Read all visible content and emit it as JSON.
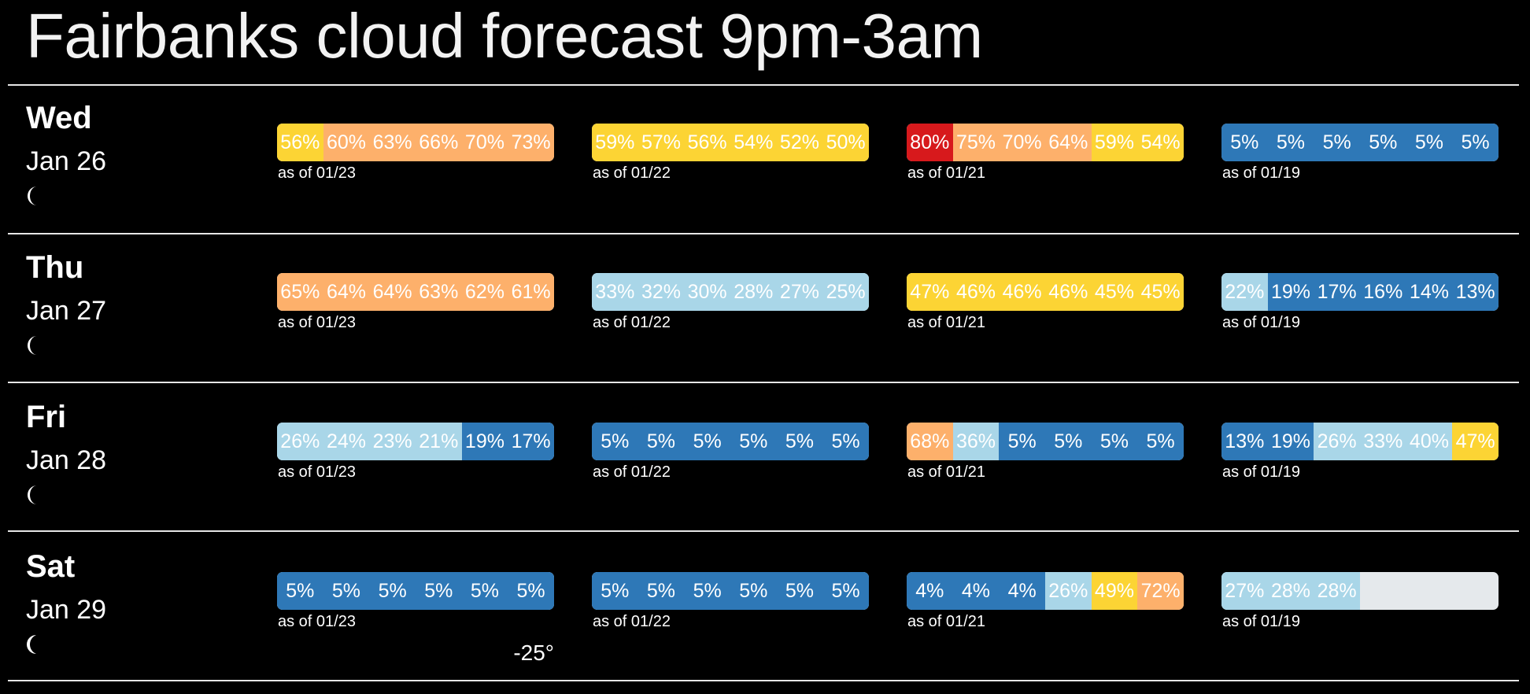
{
  "title": "Fairbanks cloud forecast 9pm-3am",
  "colors": {
    "background": "#000000",
    "clear": "#2e78b7",
    "mostly_clear": "#a9d6e8",
    "partly_cloudy": "#fcd434",
    "mostly_cloudy": "#fdb06b",
    "cloudy": "#d7191c",
    "no_data": "#e5e9ec"
  },
  "days": [
    {
      "name": "Wed",
      "date": "Jan 26",
      "moon_icon": "waning-crescent-moon-icon",
      "forecasts": [
        {
          "as_of": "as of 01/23",
          "segments": [
            {
              "label": "56%",
              "value": 56,
              "color": "#fcd434"
            },
            {
              "label": "60%",
              "value": 60,
              "color": "#fdb06b"
            },
            {
              "label": "63%",
              "value": 63,
              "color": "#fdb06b"
            },
            {
              "label": "66%",
              "value": 66,
              "color": "#fdb06b"
            },
            {
              "label": "70%",
              "value": 70,
              "color": "#fdb06b"
            },
            {
              "label": "73%",
              "value": 73,
              "color": "#fdb06b"
            }
          ]
        },
        {
          "as_of": "as of 01/22",
          "segments": [
            {
              "label": "59%",
              "value": 59,
              "color": "#fcd434"
            },
            {
              "label": "57%",
              "value": 57,
              "color": "#fcd434"
            },
            {
              "label": "56%",
              "value": 56,
              "color": "#fcd434"
            },
            {
              "label": "54%",
              "value": 54,
              "color": "#fcd434"
            },
            {
              "label": "52%",
              "value": 52,
              "color": "#fcd434"
            },
            {
              "label": "50%",
              "value": 50,
              "color": "#fcd434"
            }
          ]
        },
        {
          "as_of": "as of 01/21",
          "segments": [
            {
              "label": "80%",
              "value": 80,
              "color": "#d7191c"
            },
            {
              "label": "75%",
              "value": 75,
              "color": "#fdb06b"
            },
            {
              "label": "70%",
              "value": 70,
              "color": "#fdb06b"
            },
            {
              "label": "64%",
              "value": 64,
              "color": "#fdb06b"
            },
            {
              "label": "59%",
              "value": 59,
              "color": "#fcd434"
            },
            {
              "label": "54%",
              "value": 54,
              "color": "#fcd434"
            }
          ]
        },
        {
          "as_of": "as of 01/19",
          "segments": [
            {
              "label": "5%",
              "value": 5,
              "color": "#2e78b7"
            },
            {
              "label": "5%",
              "value": 5,
              "color": "#2e78b7"
            },
            {
              "label": "5%",
              "value": 5,
              "color": "#2e78b7"
            },
            {
              "label": "5%",
              "value": 5,
              "color": "#2e78b7"
            },
            {
              "label": "5%",
              "value": 5,
              "color": "#2e78b7"
            },
            {
              "label": "5%",
              "value": 5,
              "color": "#2e78b7"
            }
          ]
        }
      ]
    },
    {
      "name": "Thu",
      "date": "Jan 27",
      "moon_icon": "waning-crescent-moon-icon",
      "forecasts": [
        {
          "as_of": "as of 01/23",
          "segments": [
            {
              "label": "65%",
              "value": 65,
              "color": "#fdb06b"
            },
            {
              "label": "64%",
              "value": 64,
              "color": "#fdb06b"
            },
            {
              "label": "64%",
              "value": 64,
              "color": "#fdb06b"
            },
            {
              "label": "63%",
              "value": 63,
              "color": "#fdb06b"
            },
            {
              "label": "62%",
              "value": 62,
              "color": "#fdb06b"
            },
            {
              "label": "61%",
              "value": 61,
              "color": "#fdb06b"
            }
          ]
        },
        {
          "as_of": "as of 01/22",
          "segments": [
            {
              "label": "33%",
              "value": 33,
              "color": "#a9d6e8"
            },
            {
              "label": "32%",
              "value": 32,
              "color": "#a9d6e8"
            },
            {
              "label": "30%",
              "value": 30,
              "color": "#a9d6e8"
            },
            {
              "label": "28%",
              "value": 28,
              "color": "#a9d6e8"
            },
            {
              "label": "27%",
              "value": 27,
              "color": "#a9d6e8"
            },
            {
              "label": "25%",
              "value": 25,
              "color": "#a9d6e8"
            }
          ]
        },
        {
          "as_of": "as of 01/21",
          "segments": [
            {
              "label": "47%",
              "value": 47,
              "color": "#fcd434"
            },
            {
              "label": "46%",
              "value": 46,
              "color": "#fcd434"
            },
            {
              "label": "46%",
              "value": 46,
              "color": "#fcd434"
            },
            {
              "label": "46%",
              "value": 46,
              "color": "#fcd434"
            },
            {
              "label": "45%",
              "value": 45,
              "color": "#fcd434"
            },
            {
              "label": "45%",
              "value": 45,
              "color": "#fcd434"
            }
          ]
        },
        {
          "as_of": "as of 01/19",
          "segments": [
            {
              "label": "22%",
              "value": 22,
              "color": "#a9d6e8"
            },
            {
              "label": "19%",
              "value": 19,
              "color": "#2e78b7"
            },
            {
              "label": "17%",
              "value": 17,
              "color": "#2e78b7"
            },
            {
              "label": "16%",
              "value": 16,
              "color": "#2e78b7"
            },
            {
              "label": "14%",
              "value": 14,
              "color": "#2e78b7"
            },
            {
              "label": "13%",
              "value": 13,
              "color": "#2e78b7"
            }
          ]
        }
      ]
    },
    {
      "name": "Fri",
      "date": "Jan 28",
      "moon_icon": "waning-crescent-moon-icon",
      "forecasts": [
        {
          "as_of": "as of 01/23",
          "segments": [
            {
              "label": "26%",
              "value": 26,
              "color": "#a9d6e8"
            },
            {
              "label": "24%",
              "value": 24,
              "color": "#a9d6e8"
            },
            {
              "label": "23%",
              "value": 23,
              "color": "#a9d6e8"
            },
            {
              "label": "21%",
              "value": 21,
              "color": "#a9d6e8"
            },
            {
              "label": "19%",
              "value": 19,
              "color": "#2e78b7"
            },
            {
              "label": "17%",
              "value": 17,
              "color": "#2e78b7"
            }
          ]
        },
        {
          "as_of": "as of 01/22",
          "segments": [
            {
              "label": "5%",
              "value": 5,
              "color": "#2e78b7"
            },
            {
              "label": "5%",
              "value": 5,
              "color": "#2e78b7"
            },
            {
              "label": "5%",
              "value": 5,
              "color": "#2e78b7"
            },
            {
              "label": "5%",
              "value": 5,
              "color": "#2e78b7"
            },
            {
              "label": "5%",
              "value": 5,
              "color": "#2e78b7"
            },
            {
              "label": "5%",
              "value": 5,
              "color": "#2e78b7"
            }
          ]
        },
        {
          "as_of": "as of 01/21",
          "segments": [
            {
              "label": "68%",
              "value": 68,
              "color": "#fdb06b"
            },
            {
              "label": "36%",
              "value": 36,
              "color": "#a9d6e8"
            },
            {
              "label": "5%",
              "value": 5,
              "color": "#2e78b7"
            },
            {
              "label": "5%",
              "value": 5,
              "color": "#2e78b7"
            },
            {
              "label": "5%",
              "value": 5,
              "color": "#2e78b7"
            },
            {
              "label": "5%",
              "value": 5,
              "color": "#2e78b7"
            }
          ]
        },
        {
          "as_of": "as of 01/19",
          "segments": [
            {
              "label": "13%",
              "value": 13,
              "color": "#2e78b7"
            },
            {
              "label": "19%",
              "value": 19,
              "color": "#2e78b7"
            },
            {
              "label": "26%",
              "value": 26,
              "color": "#a9d6e8"
            },
            {
              "label": "33%",
              "value": 33,
              "color": "#a9d6e8"
            },
            {
              "label": "40%",
              "value": 40,
              "color": "#a9d6e8"
            },
            {
              "label": "47%",
              "value": 47,
              "color": "#fcd434"
            }
          ]
        }
      ]
    },
    {
      "name": "Sat",
      "date": "Jan 29",
      "moon_icon": "thin-waning-crescent-moon-icon",
      "temperature": "-25°",
      "forecasts": [
        {
          "as_of": "as of 01/23",
          "segments": [
            {
              "label": "5%",
              "value": 5,
              "color": "#2e78b7"
            },
            {
              "label": "5%",
              "value": 5,
              "color": "#2e78b7"
            },
            {
              "label": "5%",
              "value": 5,
              "color": "#2e78b7"
            },
            {
              "label": "5%",
              "value": 5,
              "color": "#2e78b7"
            },
            {
              "label": "5%",
              "value": 5,
              "color": "#2e78b7"
            },
            {
              "label": "5%",
              "value": 5,
              "color": "#2e78b7"
            }
          ]
        },
        {
          "as_of": "as of 01/22",
          "segments": [
            {
              "label": "5%",
              "value": 5,
              "color": "#2e78b7"
            },
            {
              "label": "5%",
              "value": 5,
              "color": "#2e78b7"
            },
            {
              "label": "5%",
              "value": 5,
              "color": "#2e78b7"
            },
            {
              "label": "5%",
              "value": 5,
              "color": "#2e78b7"
            },
            {
              "label": "5%",
              "value": 5,
              "color": "#2e78b7"
            },
            {
              "label": "5%",
              "value": 5,
              "color": "#2e78b7"
            }
          ]
        },
        {
          "as_of": "as of 01/21",
          "segments": [
            {
              "label": "4%",
              "value": 4,
              "color": "#2e78b7"
            },
            {
              "label": "4%",
              "value": 4,
              "color": "#2e78b7"
            },
            {
              "label": "4%",
              "value": 4,
              "color": "#2e78b7"
            },
            {
              "label": "26%",
              "value": 26,
              "color": "#a9d6e8"
            },
            {
              "label": "49%",
              "value": 49,
              "color": "#fcd434"
            },
            {
              "label": "72%",
              "value": 72,
              "color": "#fdb06b"
            }
          ]
        },
        {
          "as_of": "as of 01/19",
          "segments": [
            {
              "label": "27%",
              "value": 27,
              "color": "#a9d6e8"
            },
            {
              "label": "28%",
              "value": 28,
              "color": "#a9d6e8"
            },
            {
              "label": "28%",
              "value": 28,
              "color": "#a9d6e8"
            }
          ]
        }
      ]
    }
  ]
}
